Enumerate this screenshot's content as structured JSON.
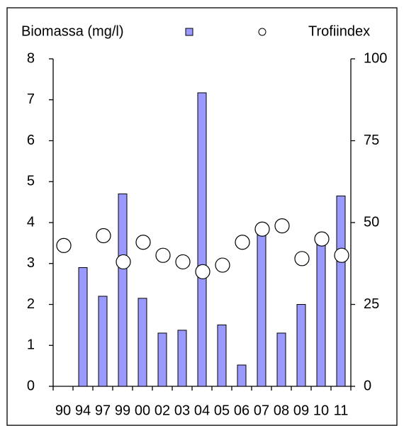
{
  "chart_data": {
    "type": "bar",
    "categories": [
      "90",
      "94",
      "97",
      "99",
      "00",
      "02",
      "03",
      "04",
      "05",
      "06",
      "07",
      "08",
      "09",
      "10",
      "11"
    ],
    "series": [
      {
        "name": "Biomassa (mg/l)",
        "type": "bar",
        "color": "#9999ff",
        "values": [
          null,
          2.9,
          2.2,
          4.7,
          2.15,
          1.3,
          1.37,
          7.17,
          1.5,
          0.52,
          3.75,
          1.3,
          2.0,
          3.55,
          4.65
        ]
      },
      {
        "name": "Trofiindex",
        "type": "scatter",
        "axis": "y2",
        "color": "#ffffff",
        "values": [
          43,
          null,
          46,
          38,
          44,
          40,
          38,
          35,
          37,
          44,
          48,
          49,
          39,
          45,
          40
        ]
      }
    ],
    "ylim": [
      0,
      8
    ],
    "yticks": [
      0,
      1,
      2,
      3,
      4,
      5,
      6,
      7,
      8
    ],
    "y2lim": [
      0,
      100
    ],
    "y2ticks": [
      0,
      25,
      50,
      75,
      100
    ],
    "legend": "top"
  }
}
